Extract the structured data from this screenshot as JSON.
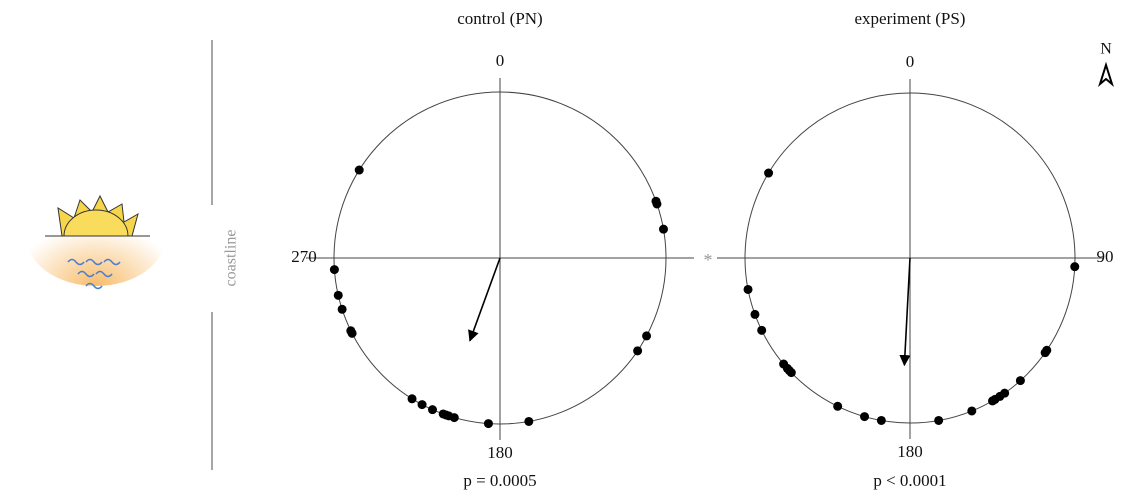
{
  "chart_data": [
    {
      "type": "circular",
      "title": "control (PN)",
      "annotation": "p = 0.0005",
      "anglelim": [
        0,
        360
      ],
      "angleticks": [
        0,
        180,
        270
      ],
      "rlim": [
        0,
        1
      ],
      "angles": [
        302,
        70,
        71,
        80,
        266,
        257,
        252,
        244,
        243,
        212,
        208,
        204,
        200,
        198,
        199,
        196,
        184,
        170,
        118,
        124
      ],
      "mean_angle": 200,
      "mean_length": 0.53,
      "color": "#000000"
    },
    {
      "type": "circular",
      "title": "experiment (PS)",
      "annotation": "p < 0.0001",
      "anglelim": [
        0,
        360
      ],
      "angleticks": [
        0,
        90,
        180
      ],
      "rlim": [
        0,
        1
      ],
      "angles": [
        301,
        93,
        259,
        250,
        244,
        228,
        226,
        230,
        227,
        206,
        196,
        190,
        170,
        158,
        150,
        149,
        147,
        145,
        138,
        125,
        124
      ],
      "mean_angle": 183,
      "mean_length": 0.65,
      "color": "#000000"
    }
  ],
  "coastline_label": "coastline",
  "significance": "*",
  "compass": "N"
}
